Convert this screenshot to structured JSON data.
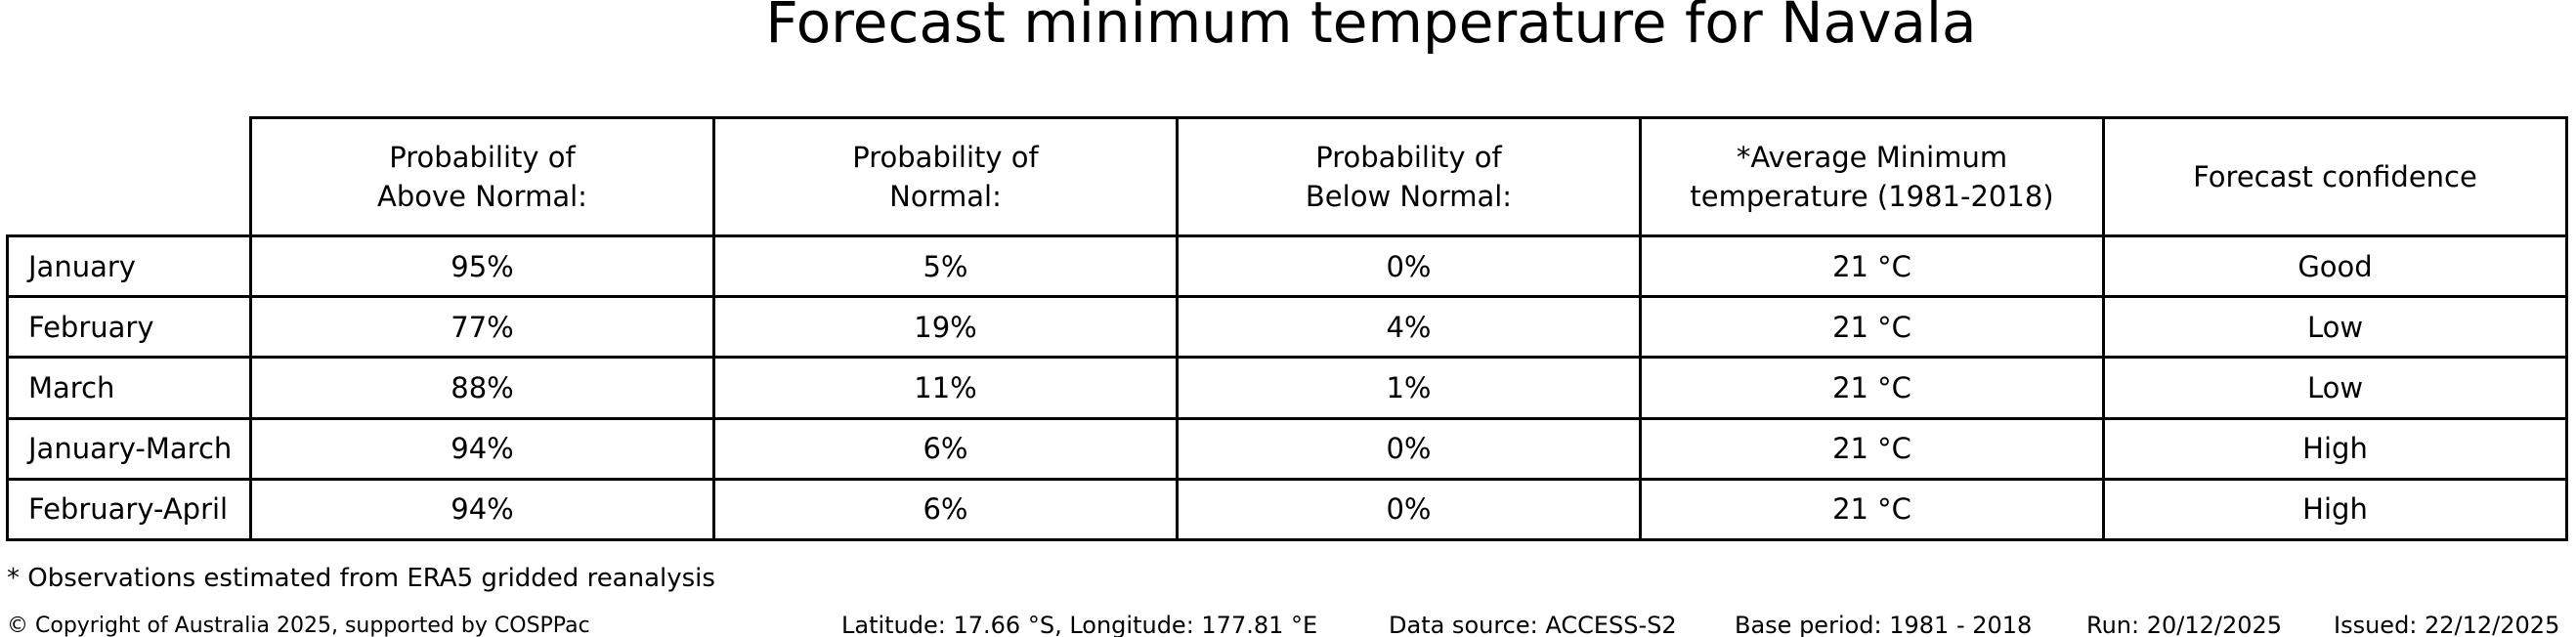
{
  "title": "Forecast minimum temperature for Navala",
  "chart_data": {
    "type": "table",
    "title": "Forecast minimum temperature for Navala",
    "columns": [
      "Probability of\nAbove Normal:",
      "Probability of\nNormal:",
      "Probability of\nBelow Normal:",
      "*Average Minimum\ntemperature (1981-2018)",
      "Forecast confidence"
    ],
    "rows": [
      {
        "label": "January",
        "above": "95%",
        "normal": "5%",
        "below": "0%",
        "avg_temp": "21 °C",
        "confidence": "Good"
      },
      {
        "label": "February",
        "above": "77%",
        "normal": "19%",
        "below": "4%",
        "avg_temp": "21 °C",
        "confidence": "Low"
      },
      {
        "label": "March",
        "above": "88%",
        "normal": "11%",
        "below": "1%",
        "avg_temp": "21 °C",
        "confidence": "Low"
      },
      {
        "label": "January-March",
        "above": "94%",
        "normal": "6%",
        "below": "0%",
        "avg_temp": "21 °C",
        "confidence": "High"
      },
      {
        "label": "February-April",
        "above": "94%",
        "normal": "6%",
        "below": "0%",
        "avg_temp": "21 °C",
        "confidence": "High"
      }
    ]
  },
  "footnote": "* Observations estimated from ERA5 gridded reanalysis",
  "footer": {
    "copyright": "© Copyright of Australia 2025, supported by COSPPac",
    "location": "Latitude: 17.66 °S, Longitude: 177.81 °E",
    "data_source": "Data source: ACCESS-S2",
    "base_period": "Base period: 1981 - 2018",
    "run": "Run: 20/12/2025",
    "issued": "Issued: 22/12/2025"
  }
}
